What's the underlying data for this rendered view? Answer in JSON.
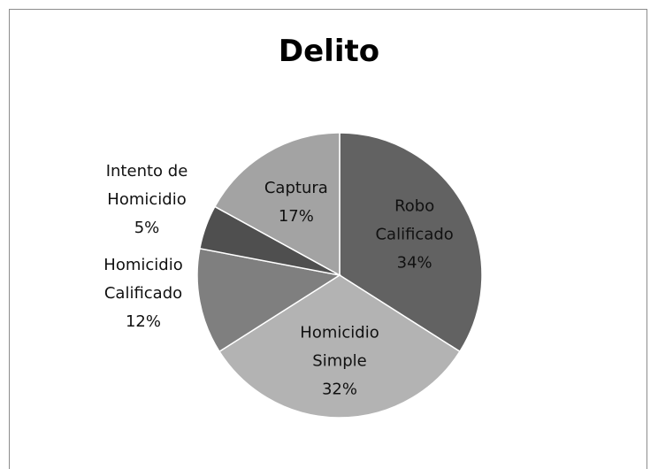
{
  "chart_data": {
    "type": "pie",
    "title": "Delito",
    "slices": [
      {
        "name": [
          "Robo",
          "Calificado"
        ],
        "value": 34,
        "percent_label": "34%",
        "color": "#626262",
        "label_side": "inside"
      },
      {
        "name": [
          "Homicidio",
          "Simple"
        ],
        "value": 32,
        "percent_label": "32%",
        "color": "#b3b3b3",
        "label_side": "inside"
      },
      {
        "name": [
          "Homicidio",
          "Calificado"
        ],
        "value": 12,
        "percent_label": "12%",
        "color": "#7f7f7f",
        "label_side": "outside"
      },
      {
        "name": [
          "Intento de",
          "Homicidio"
        ],
        "value": 5,
        "percent_label": "5%",
        "color": "#4f4f4f",
        "label_side": "outside"
      },
      {
        "name": [
          "Captura"
        ],
        "value": 17,
        "percent_label": "17%",
        "color": "#a3a3a3",
        "label_side": "inside"
      }
    ],
    "legend": "none",
    "start_angle": "top, clockwise"
  }
}
